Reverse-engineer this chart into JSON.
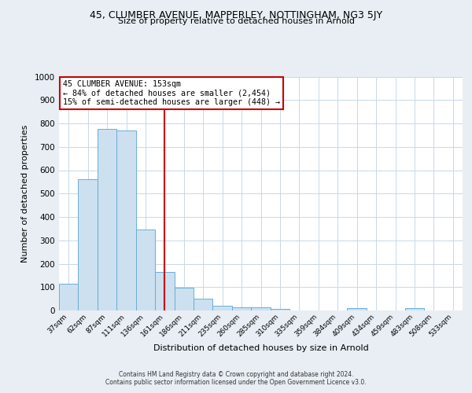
{
  "title1": "45, CLUMBER AVENUE, MAPPERLEY, NOTTINGHAM, NG3 5JY",
  "title2": "Size of property relative to detached houses in Arnold",
  "xlabel": "Distribution of detached houses by size in Arnold",
  "ylabel": "Number of detached properties",
  "bin_labels": [
    "37sqm",
    "62sqm",
    "87sqm",
    "111sqm",
    "136sqm",
    "161sqm",
    "186sqm",
    "211sqm",
    "235sqm",
    "260sqm",
    "285sqm",
    "310sqm",
    "335sqm",
    "359sqm",
    "384sqm",
    "409sqm",
    "434sqm",
    "459sqm",
    "483sqm",
    "508sqm",
    "533sqm"
  ],
  "bar_values": [
    113,
    560,
    775,
    770,
    345,
    165,
    98,
    52,
    20,
    12,
    12,
    8,
    0,
    0,
    0,
    10,
    0,
    0,
    10,
    0,
    0
  ],
  "bar_color": "#cce0f0",
  "bar_edge_color": "#6aaed6",
  "vline_x": 5,
  "vline_color": "#cc0000",
  "ylim": [
    0,
    1000
  ],
  "yticks": [
    0,
    100,
    200,
    300,
    400,
    500,
    600,
    700,
    800,
    900,
    1000
  ],
  "annotation_title": "45 CLUMBER AVENUE: 153sqm",
  "annotation_line1": "← 84% of detached houses are smaller (2,454)",
  "annotation_line2": "15% of semi-detached houses are larger (448) →",
  "footnote1": "Contains HM Land Registry data © Crown copyright and database right 2024.",
  "footnote2": "Contains public sector information licensed under the Open Government Licence v3.0.",
  "bg_color": "#e8eef4",
  "plot_bg_color": "#ffffff",
  "grid_color": "#c8d8e8"
}
